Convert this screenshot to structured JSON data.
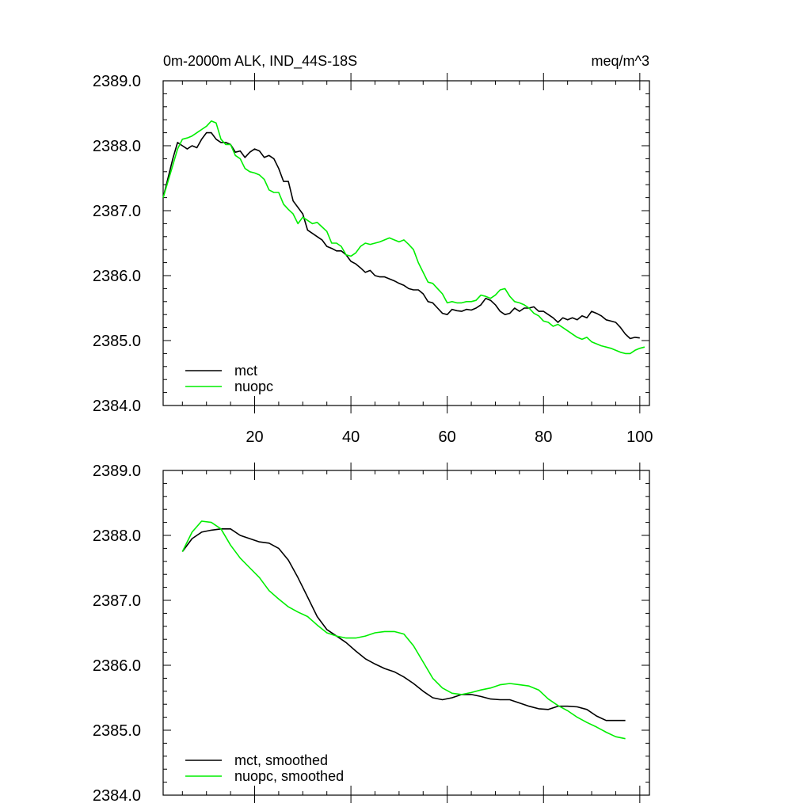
{
  "figure": {
    "title_left": "0m-2000m ALK, IND_44S-18S",
    "title_right": "meq/m^3"
  },
  "colors": {
    "mct": "#000000",
    "nuopc": "#00ee00"
  },
  "chart_data": [
    {
      "type": "line",
      "title": "0m-2000m ALK, IND_44S-18S",
      "units": "meq/m^3",
      "xlim": [
        1,
        102
      ],
      "ylim": [
        2384.0,
        2389.0
      ],
      "xticks": [
        20,
        40,
        60,
        80,
        100
      ],
      "xtick_labels": [
        "20",
        "40",
        "60",
        "80",
        "100"
      ],
      "yticks": [
        2384.0,
        2385.0,
        2386.0,
        2387.0,
        2388.0,
        2389.0
      ],
      "ytick_labels": [
        "2384.0",
        "2385.0",
        "2386.0",
        "2387.0",
        "2388.0",
        "2389.0"
      ],
      "legend_position": "bottom-left",
      "series": [
        {
          "name": "mct",
          "color": "#000000",
          "x": [
            1,
            2,
            3,
            4,
            5,
            6,
            7,
            8,
            9,
            10,
            11,
            12,
            13,
            14,
            15,
            16,
            17,
            18,
            19,
            20,
            21,
            22,
            23,
            24,
            25,
            26,
            27,
            28,
            29,
            30,
            31,
            32,
            33,
            34,
            35,
            36,
            37,
            38,
            39,
            40,
            41,
            42,
            43,
            44,
            45,
            46,
            47,
            48,
            49,
            50,
            51,
            52,
            53,
            54,
            55,
            56,
            57,
            58,
            59,
            60,
            61,
            62,
            63,
            64,
            65,
            66,
            67,
            68,
            69,
            70,
            71,
            72,
            73,
            74,
            75,
            76,
            77,
            78,
            79,
            80,
            81,
            82,
            83,
            84,
            85,
            86,
            87,
            88,
            89,
            90,
            91,
            92,
            93,
            94,
            95,
            96,
            97,
            98,
            99,
            100
          ],
          "y": [
            2387.2,
            2387.5,
            2387.8,
            2388.05,
            2388.0,
            2387.95,
            2388.0,
            2387.97,
            2388.1,
            2388.2,
            2388.2,
            2388.1,
            2388.05,
            2388.05,
            2388.02,
            2387.9,
            2387.92,
            2387.82,
            2387.9,
            2387.95,
            2387.92,
            2387.82,
            2387.85,
            2387.8,
            2387.65,
            2387.45,
            2387.45,
            2387.15,
            2387.05,
            2386.95,
            2386.7,
            2386.65,
            2386.6,
            2386.55,
            2386.45,
            2386.42,
            2386.38,
            2386.38,
            2386.32,
            2386.22,
            2386.18,
            2386.12,
            2386.05,
            2386.08,
            2386.0,
            2385.98,
            2385.98,
            2385.95,
            2385.92,
            2385.88,
            2385.85,
            2385.8,
            2385.78,
            2385.78,
            2385.72,
            2385.6,
            2385.58,
            2385.5,
            2385.42,
            2385.4,
            2385.48,
            2385.46,
            2385.45,
            2385.48,
            2385.47,
            2385.5,
            2385.55,
            2385.65,
            2385.62,
            2385.55,
            2385.45,
            2385.4,
            2385.42,
            2385.5,
            2385.45,
            2385.5,
            2385.5,
            2385.52,
            2385.45,
            2385.45,
            2385.4,
            2385.35,
            2385.28,
            2385.35,
            2385.32,
            2385.35,
            2385.32,
            2385.38,
            2385.35,
            2385.45,
            2385.42,
            2385.38,
            2385.32,
            2385.3,
            2385.28,
            2385.2,
            2385.1,
            2385.03,
            2385.05,
            2385.04
          ]
        },
        {
          "name": "nuopc",
          "color": "#00ee00",
          "x": [
            1,
            2,
            3,
            4,
            5,
            6,
            7,
            8,
            9,
            10,
            11,
            12,
            13,
            14,
            15,
            16,
            17,
            18,
            19,
            20,
            21,
            22,
            23,
            24,
            25,
            26,
            27,
            28,
            29,
            30,
            31,
            32,
            33,
            34,
            35,
            36,
            37,
            38,
            39,
            40,
            41,
            42,
            43,
            44,
            45,
            46,
            47,
            48,
            49,
            50,
            51,
            52,
            53,
            54,
            55,
            56,
            57,
            58,
            59,
            60,
            61,
            62,
            63,
            64,
            65,
            66,
            67,
            68,
            69,
            70,
            71,
            72,
            73,
            74,
            75,
            76,
            77,
            78,
            79,
            80,
            81,
            82,
            83,
            84,
            85,
            86,
            87,
            88,
            89,
            90,
            91,
            92,
            93,
            94,
            95,
            96,
            97,
            98,
            99,
            100,
            101
          ],
          "y": [
            2387.2,
            2387.45,
            2387.7,
            2387.95,
            2388.1,
            2388.12,
            2388.15,
            2388.2,
            2388.25,
            2388.3,
            2388.38,
            2388.35,
            2388.1,
            2388.02,
            2388.02,
            2387.85,
            2387.8,
            2387.65,
            2387.6,
            2387.58,
            2387.55,
            2387.48,
            2387.32,
            2387.28,
            2387.28,
            2387.1,
            2387.02,
            2386.95,
            2386.8,
            2386.9,
            2386.85,
            2386.8,
            2386.82,
            2386.75,
            2386.68,
            2386.5,
            2386.5,
            2386.45,
            2386.32,
            2386.3,
            2386.35,
            2386.45,
            2386.5,
            2386.48,
            2386.5,
            2386.52,
            2386.55,
            2386.58,
            2386.55,
            2386.52,
            2386.55,
            2386.48,
            2386.4,
            2386.2,
            2386.05,
            2385.9,
            2385.88,
            2385.8,
            2385.72,
            2385.58,
            2385.6,
            2385.58,
            2385.58,
            2385.6,
            2385.6,
            2385.62,
            2385.7,
            2385.68,
            2385.65,
            2385.7,
            2385.78,
            2385.8,
            2385.68,
            2385.6,
            2385.58,
            2385.55,
            2385.5,
            2385.42,
            2385.38,
            2385.3,
            2385.28,
            2385.22,
            2385.25,
            2385.2,
            2385.15,
            2385.1,
            2385.05,
            2385.02,
            2385.05,
            2384.98,
            2384.95,
            2384.92,
            2384.9,
            2384.88,
            2384.85,
            2384.82,
            2384.8,
            2384.8,
            2384.85,
            2384.88,
            2384.9
          ]
        }
      ]
    },
    {
      "type": "line",
      "xlim": [
        1,
        102
      ],
      "ylim": [
        2384.0,
        2389.0
      ],
      "xticks": [
        20,
        40,
        60,
        80,
        100
      ],
      "yticks": [
        2384.0,
        2385.0,
        2386.0,
        2387.0,
        2388.0,
        2389.0
      ],
      "ytick_labels": [
        "2384.0",
        "2385.0",
        "2386.0",
        "2387.0",
        "2388.0",
        "2389.0"
      ],
      "legend_position": "bottom-left",
      "series": [
        {
          "name": "mct, smoothed",
          "color": "#000000",
          "x": [
            5,
            7,
            9,
            11,
            13,
            15,
            17,
            19,
            21,
            23,
            25,
            27,
            29,
            31,
            33,
            35,
            37,
            39,
            41,
            43,
            45,
            47,
            49,
            51,
            53,
            55,
            57,
            59,
            61,
            63,
            65,
            67,
            69,
            71,
            73,
            75,
            77,
            79,
            81,
            83,
            85,
            87,
            89,
            91,
            93,
            95,
            97
          ],
          "y": [
            2387.75,
            2387.95,
            2388.05,
            2388.08,
            2388.1,
            2388.1,
            2388.0,
            2387.95,
            2387.9,
            2387.88,
            2387.8,
            2387.62,
            2387.35,
            2387.05,
            2386.75,
            2386.55,
            2386.45,
            2386.35,
            2386.22,
            2386.1,
            2386.02,
            2385.95,
            2385.9,
            2385.82,
            2385.72,
            2385.6,
            2385.5,
            2385.47,
            2385.5,
            2385.55,
            2385.55,
            2385.52,
            2385.48,
            2385.47,
            2385.47,
            2385.42,
            2385.37,
            2385.33,
            2385.32,
            2385.37,
            2385.37,
            2385.36,
            2385.32,
            2385.22,
            2385.15,
            2385.15,
            2385.15
          ]
        },
        {
          "name": "nuopc, smoothed",
          "color": "#00ee00",
          "x": [
            5,
            7,
            9,
            11,
            13,
            15,
            17,
            19,
            21,
            23,
            25,
            27,
            29,
            31,
            33,
            35,
            37,
            39,
            41,
            43,
            45,
            47,
            49,
            51,
            53,
            55,
            57,
            59,
            61,
            63,
            65,
            67,
            69,
            71,
            73,
            75,
            77,
            79,
            81,
            83,
            85,
            87,
            89,
            91,
            93,
            95,
            97
          ],
          "y": [
            2387.75,
            2388.05,
            2388.22,
            2388.2,
            2388.1,
            2387.85,
            2387.65,
            2387.5,
            2387.35,
            2387.15,
            2387.02,
            2386.9,
            2386.82,
            2386.75,
            2386.62,
            2386.5,
            2386.45,
            2386.42,
            2386.42,
            2386.45,
            2386.5,
            2386.52,
            2386.52,
            2386.48,
            2386.3,
            2386.05,
            2385.8,
            2385.65,
            2385.57,
            2385.55,
            2385.58,
            2385.62,
            2385.65,
            2385.7,
            2385.72,
            2385.7,
            2385.68,
            2385.62,
            2385.48,
            2385.38,
            2385.3,
            2385.2,
            2385.12,
            2385.05,
            2384.97,
            2384.9,
            2384.87
          ]
        }
      ]
    }
  ]
}
